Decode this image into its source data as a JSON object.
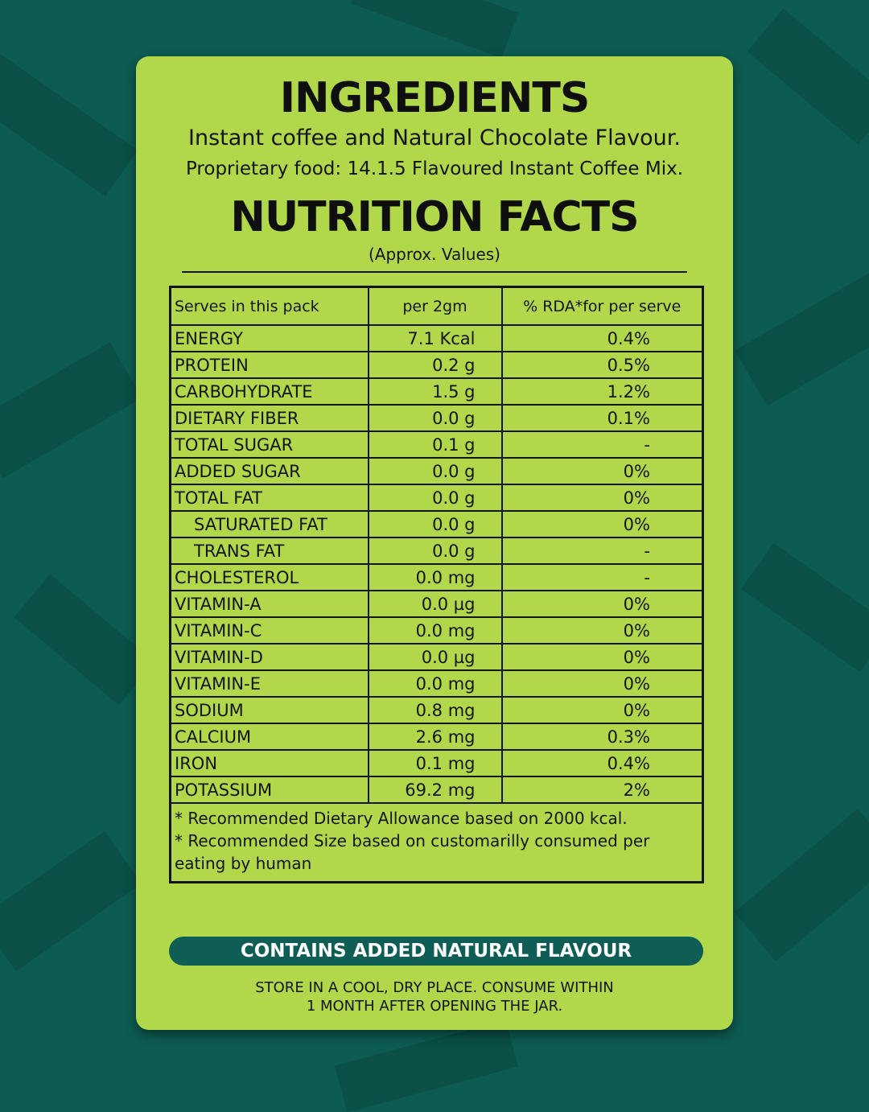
{
  "ingredients": {
    "title": "INGREDIENTS",
    "line1": "Instant coffee and Natural Chocolate Flavour.",
    "line2": "Proprietary food: 14.1.5 Flavoured Instant Coffee Mix."
  },
  "nutrition": {
    "title": "NUTRITION FACTS",
    "subtitle": "(Approx. Values)",
    "headers": [
      "Serves in this pack",
      "per 2gm",
      "% RDA*for per serve"
    ],
    "rows": [
      {
        "name": "ENERGY",
        "value": "7.1 Kcal",
        "rda": "0.4%"
      },
      {
        "name": "PROTEIN",
        "value": "0.2 g",
        "rda": "0.5%"
      },
      {
        "name": "CARBOHYDRATE",
        "value": "1.5 g",
        "rda": "1.2%"
      },
      {
        "name": "DIETARY FIBER",
        "value": "0.0 g",
        "rda": "0.1%"
      },
      {
        "name": "TOTAL SUGAR",
        "value": "0.1 g",
        "rda": "-"
      },
      {
        "name": "ADDED SUGAR",
        "value": "0.0 g",
        "rda": "0%"
      },
      {
        "name": "TOTAL FAT",
        "value": "0.0 g",
        "rda": "0%"
      },
      {
        "name": "SATURATED FAT",
        "value": "0.0 g",
        "rda": "0%"
      },
      {
        "name": "TRANS FAT",
        "value": "0.0 g",
        "rda": "-"
      },
      {
        "name": "CHOLESTEROL",
        "value": "0.0 mg",
        "rda": "-"
      },
      {
        "name": "VITAMIN-A",
        "value": "0.0 µg",
        "rda": "0%"
      },
      {
        "name": "VITAMIN-C",
        "value": "0.0 mg",
        "rda": "0%"
      },
      {
        "name": "VITAMIN-D",
        "value": "0.0 µg",
        "rda": "0%"
      },
      {
        "name": "VITAMIN-E",
        "value": "0.0 mg",
        "rda": "0%"
      },
      {
        "name": "SODIUM",
        "value": "0.8 mg",
        "rda": "0%"
      },
      {
        "name": "CALCIUM",
        "value": "2.6 mg",
        "rda": "0.3%"
      },
      {
        "name": "IRON",
        "value": "0.1 mg",
        "rda": "0.4%"
      },
      {
        "name": "POTASSIUM",
        "value": "69.2 mg",
        "rda": "2%"
      }
    ],
    "footnote1": "* Recommended  Dietary Allowance based on 2000 kcal.",
    "footnote2": "* Recommended Size based on customarilly consumed per eating by human"
  },
  "banner": "CONTAINS ADDED NATURAL  FLAVOUR",
  "storage": {
    "line1": "STORE IN A COOL, DRY PLACE. CONSUME WITHIN",
    "line2": "1 MONTH AFTER OPENING THE JAR."
  }
}
